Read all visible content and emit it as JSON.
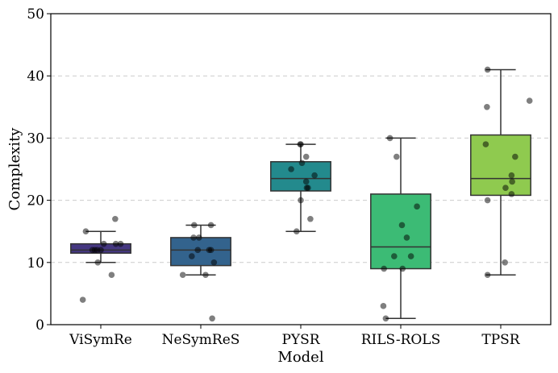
{
  "chart_data": {
    "type": "box",
    "title": "",
    "xlabel": "Model",
    "ylabel": "Complexity",
    "ylim": [
      0,
      50
    ],
    "yticks": [
      0,
      10,
      20,
      30,
      40,
      50
    ],
    "grid": "y-dashed",
    "categories": [
      "ViSymRe",
      "NeSymReS",
      "PYSR",
      "RILS-ROLS",
      "TPSR"
    ],
    "colors": [
      "#453781",
      "#33638d",
      "#238a8d",
      "#3cbb75",
      "#8fca4f"
    ],
    "boxes": [
      {
        "name": "ViSymRe",
        "whisker_low": 10,
        "q1": 11.5,
        "median": 12,
        "q3": 13,
        "whisker_high": 15
      },
      {
        "name": "NeSymReS",
        "whisker_low": 8,
        "q1": 9.5,
        "median": 12,
        "q3": 14,
        "whisker_high": 16
      },
      {
        "name": "PYSR",
        "whisker_low": 15,
        "q1": 21.5,
        "median": 23.5,
        "q3": 26.2,
        "whisker_high": 29
      },
      {
        "name": "RILS-ROLS",
        "whisker_low": 1,
        "q1": 9,
        "median": 12.5,
        "q3": 21,
        "whisker_high": 30
      },
      {
        "name": "TPSR",
        "whisker_low": 8,
        "q1": 20.8,
        "median": 23.5,
        "q3": 30.5,
        "whisker_high": 41
      }
    ],
    "points": [
      {
        "name": "ViSymRe",
        "values": [
          4,
          8,
          10,
          12,
          12,
          12,
          12,
          13,
          13,
          13,
          15,
          17
        ],
        "jitter": [
          -0.3,
          0.18,
          -0.05,
          -0.14,
          -0.1,
          -0.06,
          0.0,
          0.05,
          0.25,
          0.33,
          -0.25,
          0.24
        ]
      },
      {
        "name": "NeSymReS",
        "values": [
          1,
          8,
          8,
          10,
          11,
          12,
          12,
          12,
          14,
          14,
          16,
          16
        ],
        "jitter": [
          0.19,
          -0.3,
          0.08,
          0.22,
          -0.15,
          -0.05,
          0.14,
          0.17,
          -0.12,
          -0.03,
          -0.11,
          0.17
        ]
      },
      {
        "name": "PYSR",
        "values": [
          15,
          17,
          20,
          22,
          22,
          23,
          24,
          25,
          26,
          27,
          29,
          29
        ],
        "jitter": [
          -0.07,
          0.16,
          0.0,
          0.1,
          0.12,
          0.09,
          0.23,
          -0.16,
          0.02,
          0.09,
          -0.01,
          0.0
        ]
      },
      {
        "name": "RILS-ROLS",
        "values": [
          1,
          3,
          9,
          9,
          11,
          11,
          14,
          16,
          19,
          27,
          30
        ],
        "jitter": [
          -0.25,
          -0.29,
          -0.28,
          0.03,
          -0.11,
          0.17,
          0.1,
          0.02,
          0.27,
          -0.07,
          -0.18
        ]
      },
      {
        "name": "TPSR",
        "values": [
          8,
          10,
          20,
          21,
          22,
          23,
          24,
          27,
          29,
          35,
          36,
          41
        ],
        "jitter": [
          -0.22,
          0.07,
          -0.22,
          0.18,
          0.08,
          0.19,
          0.18,
          0.24,
          -0.25,
          -0.23,
          0.48,
          -0.22
        ]
      }
    ]
  }
}
